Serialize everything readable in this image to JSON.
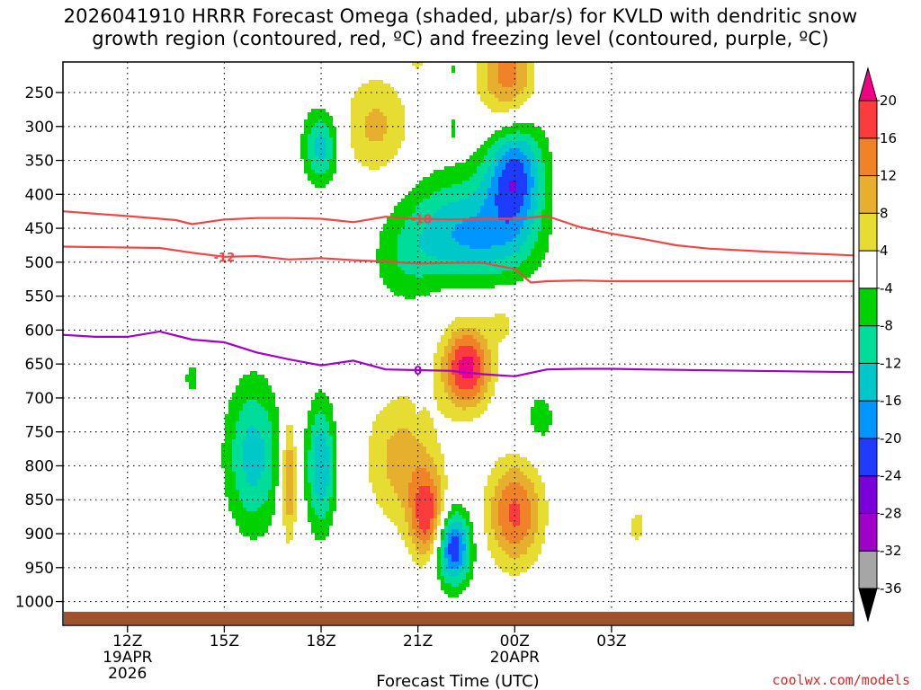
{
  "title": {
    "line1": "2026041910 HRRR Forecast Omega (shaded, μbar/s) for KVLD with dendritic snow",
    "line2": "growth region (contoured, red, ºC) and freezing level (contoured, purple, ºC)"
  },
  "credit": "coolwx.com/models",
  "chart_data": {
    "type": "time-height cross-section",
    "xlabel": "Forecast Time (UTC)",
    "x_range_hours": [
      10,
      34.5
    ],
    "x_ticks": [
      {
        "hour": 12,
        "label": "12Z",
        "sub1": "19APR",
        "sub2": "2026"
      },
      {
        "hour": 15,
        "label": "15Z",
        "sub1": "",
        "sub2": ""
      },
      {
        "hour": 18,
        "label": "18Z",
        "sub1": "",
        "sub2": ""
      },
      {
        "hour": 21,
        "label": "21Z",
        "sub1": "",
        "sub2": ""
      },
      {
        "hour": 24,
        "label": "00Z",
        "sub1": "20APR",
        "sub2": ""
      },
      {
        "hour": 27,
        "label": "03Z",
        "sub1": "",
        "sub2": ""
      }
    ],
    "y_range_hpa": [
      1035,
      205
    ],
    "y_ticks": [
      250,
      300,
      350,
      400,
      450,
      500,
      550,
      600,
      650,
      700,
      750,
      800,
      850,
      900,
      950,
      1000
    ],
    "colorbar": {
      "colors": [
        "#000000",
        "#a6a6a6",
        "#a000c8",
        "#7a00dc",
        "#1e3cff",
        "#0096ff",
        "#00c8c8",
        "#00dc9a",
        "#00d200",
        "#ffffff",
        "#e6dc32",
        "#e6af2d",
        "#f08228",
        "#fa3c3c",
        "#f00082"
      ],
      "boundaries": [
        -36,
        -32,
        -28,
        -24,
        -20,
        -16,
        -12,
        -8,
        -4,
        4,
        8,
        12,
        16,
        20
      ],
      "labels": [
        "20",
        "16",
        "12",
        "8",
        "4",
        "-4",
        "-8",
        "-12",
        "-16",
        "-20",
        "-24",
        "-28",
        "-32",
        "-36"
      ]
    },
    "omega_features": [
      {
        "hour": 18.0,
        "hpa": 330,
        "value": -14,
        "rx": 0.55,
        "ry": 55
      },
      {
        "hour": 19.7,
        "hpa": 300,
        "value": 9,
        "rx": 1.05,
        "ry": 75
      },
      {
        "hour": 21.0,
        "hpa": 207,
        "value": 4.5,
        "rx": 0.3,
        "ry": 12
      },
      {
        "hour": 22.1,
        "hpa": 215,
        "value": -5,
        "rx": 0.25,
        "ry": 20
      },
      {
        "hour": 22.1,
        "hpa": 300,
        "value": -5,
        "rx": 0.12,
        "ry": 25
      },
      {
        "hour": 23.8,
        "hpa": 230,
        "value": 15,
        "rx": 0.9,
        "ry": 85
      },
      {
        "hour": 24.9,
        "hpa": 220,
        "value": -6,
        "rx": 0.22,
        "ry": 50
      },
      {
        "hour": 24.0,
        "hpa": 370,
        "value": -22,
        "rx": 0.9,
        "ry": 90
      },
      {
        "hour": 22.3,
        "hpa": 440,
        "value": -13,
        "rx": 1.8,
        "ry": 75
      },
      {
        "hour": 20.6,
        "hpa": 505,
        "value": -5.5,
        "rx": 1.05,
        "ry": 65
      },
      {
        "hour": 23.0,
        "hpa": 485,
        "value": -6,
        "rx": 1.8,
        "ry": 50
      },
      {
        "hour": 22.5,
        "hpa": 655,
        "value": 22,
        "rx": 0.75,
        "ry": 60
      },
      {
        "hour": 23.6,
        "hpa": 590,
        "value": 5,
        "rx": 0.5,
        "ry": 30
      },
      {
        "hour": 20.5,
        "hpa": 790,
        "value": 10,
        "rx": 1.1,
        "ry": 95
      },
      {
        "hour": 21.3,
        "hpa": 875,
        "value": 18,
        "rx": 0.55,
        "ry": 65
      },
      {
        "hour": 24.0,
        "hpa": 870,
        "value": 17,
        "rx": 0.85,
        "ry": 75
      },
      {
        "hour": 22.1,
        "hpa": 920,
        "value": -24,
        "rx": 0.55,
        "ry": 55
      },
      {
        "hour": 24.8,
        "hpa": 730,
        "value": -6,
        "rx": 0.55,
        "ry": 45
      },
      {
        "hour": 15.9,
        "hpa": 785,
        "value": -14,
        "rx": 0.85,
        "ry": 110
      },
      {
        "hour": 17.0,
        "hpa": 820,
        "value": 14,
        "rx": 0.25,
        "ry": 90
      },
      {
        "hour": 18.0,
        "hpa": 800,
        "value": -16,
        "rx": 0.45,
        "ry": 95
      },
      {
        "hour": 14.0,
        "hpa": 670,
        "value": -6,
        "rx": 0.25,
        "ry": 28
      },
      {
        "hour": 21.0,
        "hpa": 700,
        "value": -5,
        "rx": 0.08,
        "ry": 20
      },
      {
        "hour": 27.8,
        "hpa": 890,
        "value": 5,
        "rx": 0.4,
        "ry": 40
      }
    ],
    "contours": [
      {
        "name": "-18C",
        "color": "#f04646",
        "label": "-18",
        "label_hour": 21.1,
        "hours": [
          10,
          12,
          13.5,
          14,
          15,
          16,
          17,
          18,
          19,
          20,
          21,
          22,
          23,
          24,
          25,
          26,
          27,
          28,
          29,
          30,
          32,
          34.5
        ],
        "hpa": [
          425,
          432,
          438,
          444,
          437,
          435,
          435,
          436,
          441,
          433,
          436,
          437,
          436,
          436,
          432,
          448,
          458,
          466,
          475,
          480,
          485,
          490
        ]
      },
      {
        "name": "-12C",
        "color": "#f04646",
        "label": "-12",
        "label_hour": 15,
        "hours": [
          10,
          13,
          14,
          15,
          16,
          17,
          18,
          19,
          20,
          21,
          22,
          23,
          24,
          24.5,
          25,
          26,
          27,
          28,
          30,
          34.5
        ],
        "hpa": [
          477,
          479,
          486,
          492,
          491,
          496,
          494,
          497,
          499,
          502,
          501,
          501,
          510,
          530,
          528,
          527,
          528,
          528,
          528,
          528
        ]
      },
      {
        "name": "0C",
        "color": "#a000c8",
        "label": "0",
        "label_hour": 21,
        "hours": [
          10,
          11,
          12,
          13,
          14,
          15,
          16,
          17,
          18,
          19,
          20,
          21,
          22,
          23,
          24,
          25,
          26,
          27,
          28,
          34.5
        ],
        "hpa": [
          607,
          610,
          610,
          602,
          614,
          618,
          633,
          643,
          652,
          645,
          658,
          659,
          660,
          665,
          668,
          658,
          657,
          657,
          658,
          662
        ]
      }
    ],
    "ground_hpa": 1015
  }
}
